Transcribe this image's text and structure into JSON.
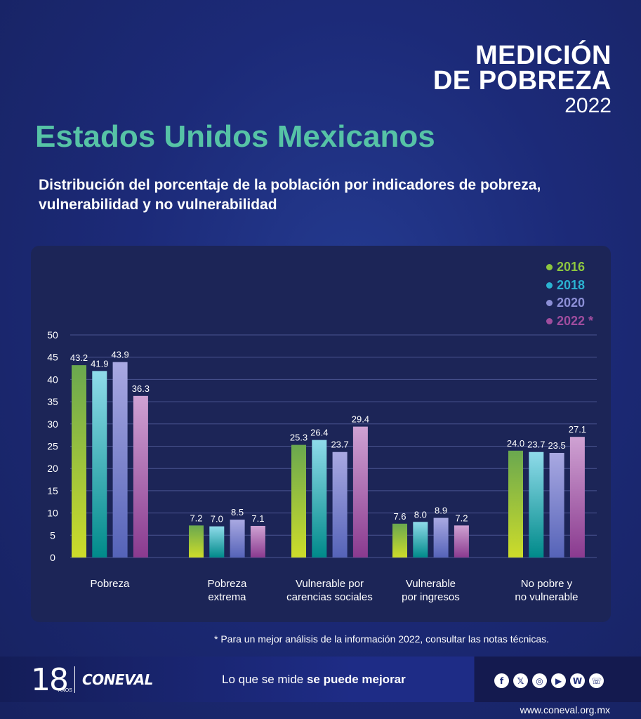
{
  "brand": {
    "line1": "MEDICIÓN",
    "line2": "DE POBREZA",
    "year": "2022"
  },
  "title": "Estados Unidos Mexicanos",
  "subtitle": "Distribución del porcentaje de la población por indicadores de pobreza, vulnerabilidad y no vulnerabilidad",
  "note": "* Para un mejor análisis de la información 2022, consultar las notas técnicas.",
  "colors": {
    "2016": "#8dc63f",
    "2018": "#2bb3d1",
    "2020": "#8c8fd6",
    "2022": "#a04d9e"
  },
  "chart_data": {
    "type": "bar",
    "categories": [
      "Pobreza",
      "Pobreza extrema",
      "Vulnerable por carencias sociales",
      "Vulnerable por ingresos",
      "No pobre y no vulnerable"
    ],
    "category_lines": [
      [
        "Pobreza"
      ],
      [
        "Pobreza",
        "extrema"
      ],
      [
        "Vulnerable por",
        "carencias sociales"
      ],
      [
        "Vulnerable",
        "por ingresos"
      ],
      [
        "No pobre y",
        "no vulnerable"
      ]
    ],
    "series": [
      {
        "name": "2016",
        "values": [
          43.2,
          7.2,
          25.3,
          7.6,
          24.0
        ]
      },
      {
        "name": "2018",
        "values": [
          41.9,
          7.0,
          26.4,
          8.0,
          23.7
        ]
      },
      {
        "name": "2020",
        "values": [
          43.9,
          8.5,
          23.7,
          8.9,
          23.5
        ]
      },
      {
        "name": "2022 *",
        "values": [
          36.3,
          7.1,
          29.4,
          7.2,
          27.1
        ]
      }
    ],
    "ylim": [
      0,
      50
    ],
    "yticks": [
      0,
      5,
      10,
      15,
      20,
      25,
      30,
      35,
      40,
      45,
      50
    ],
    "grid": true,
    "legend": "top-right"
  },
  "footer": {
    "anniversary": "18",
    "anniversary_sub": "AÑOS",
    "logo": "CONEVAL",
    "slogan_start": "Lo que se mide ",
    "slogan_bold": "se puede mejorar",
    "social": [
      "f",
      "𝕏",
      "◎",
      "▶",
      "W",
      "☏"
    ],
    "url": "www.coneval.org.mx"
  }
}
